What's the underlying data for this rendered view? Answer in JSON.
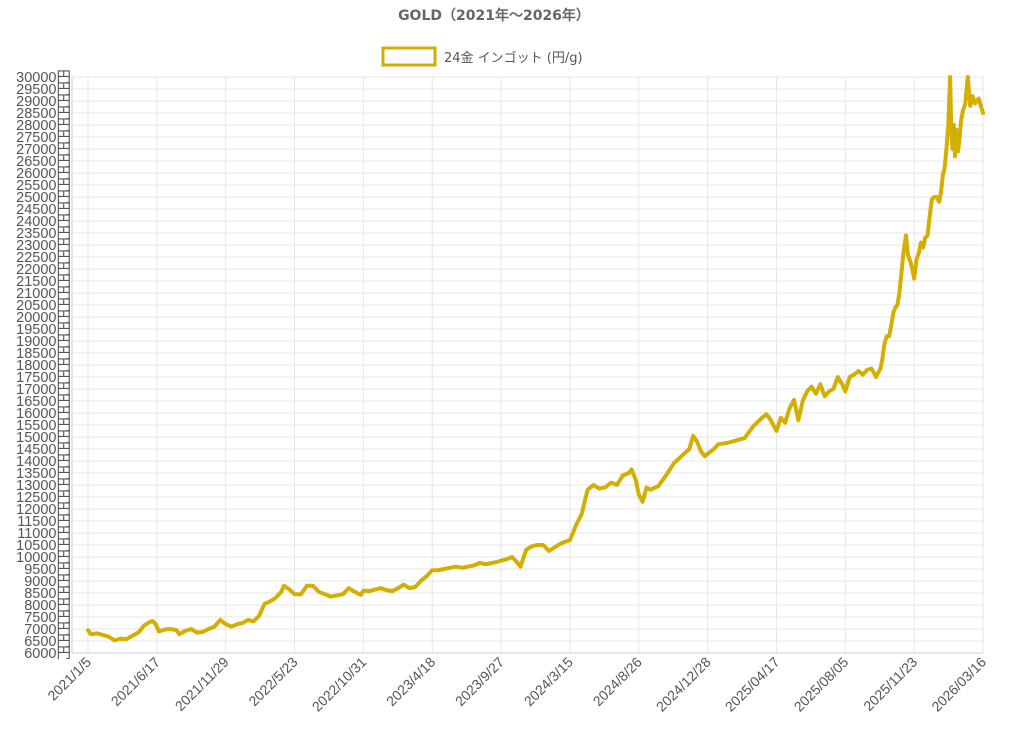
{
  "chart_data": {
    "type": "line",
    "title": "GOLD（2021年～2026年）",
    "series": [
      {
        "name": "24金 インゴット (円/g)",
        "color": "#d4ae00",
        "points": [
          [
            "2021-01-05",
            6950
          ],
          [
            "2021-01-12",
            6780
          ],
          [
            "2021-01-26",
            6820
          ],
          [
            "2021-02-09",
            6750
          ],
          [
            "2021-02-23",
            6680
          ],
          [
            "2021-03-09",
            6520
          ],
          [
            "2021-03-23",
            6600
          ],
          [
            "2021-04-06",
            6580
          ],
          [
            "2021-04-20",
            6720
          ],
          [
            "2021-05-04",
            6850
          ],
          [
            "2021-05-18",
            7150
          ],
          [
            "2021-06-01",
            7300
          ],
          [
            "2021-06-08",
            7330
          ],
          [
            "2021-06-15",
            7180
          ],
          [
            "2021-06-22",
            6900
          ],
          [
            "2021-07-06",
            6980
          ],
          [
            "2021-07-20",
            7000
          ],
          [
            "2021-08-03",
            6950
          ],
          [
            "2021-08-10",
            6780
          ],
          [
            "2021-08-24",
            6920
          ],
          [
            "2021-09-07",
            7000
          ],
          [
            "2021-09-21",
            6850
          ],
          [
            "2021-10-05",
            6880
          ],
          [
            "2021-10-19",
            7000
          ],
          [
            "2021-11-02",
            7100
          ],
          [
            "2021-11-16",
            7380
          ],
          [
            "2021-11-29",
            7200
          ],
          [
            "2021-12-14",
            7100
          ],
          [
            "2021-12-28",
            7200
          ],
          [
            "2022-01-11",
            7250
          ],
          [
            "2022-01-25",
            7380
          ],
          [
            "2022-02-08",
            7320
          ],
          [
            "2022-02-22",
            7550
          ],
          [
            "2022-03-08",
            8050
          ],
          [
            "2022-03-22",
            8150
          ],
          [
            "2022-04-05",
            8300
          ],
          [
            "2022-04-19",
            8550
          ],
          [
            "2022-04-26",
            8800
          ],
          [
            "2022-05-10",
            8650
          ],
          [
            "2022-05-23",
            8450
          ],
          [
            "2022-06-07",
            8450
          ],
          [
            "2022-06-21",
            8800
          ],
          [
            "2022-07-05",
            8800
          ],
          [
            "2022-07-19",
            8550
          ],
          [
            "2022-08-02",
            8450
          ],
          [
            "2022-08-16",
            8350
          ],
          [
            "2022-08-30",
            8400
          ],
          [
            "2022-09-13",
            8450
          ],
          [
            "2022-09-27",
            8700
          ],
          [
            "2022-10-11",
            8550
          ],
          [
            "2022-10-25",
            8420
          ],
          [
            "2022-10-31",
            8600
          ],
          [
            "2022-11-15",
            8580
          ],
          [
            "2022-11-29",
            8650
          ],
          [
            "2022-12-13",
            8700
          ],
          [
            "2022-12-27",
            8620
          ],
          [
            "2023-01-10",
            8580
          ],
          [
            "2023-01-24",
            8700
          ],
          [
            "2023-02-07",
            8850
          ],
          [
            "2023-02-21",
            8700
          ],
          [
            "2023-03-07",
            8750
          ],
          [
            "2023-03-21",
            9000
          ],
          [
            "2023-04-04",
            9200
          ],
          [
            "2023-04-18",
            9450
          ],
          [
            "2023-05-02",
            9450
          ],
          [
            "2023-05-16",
            9500
          ],
          [
            "2023-05-30",
            9550
          ],
          [
            "2023-06-13",
            9600
          ],
          [
            "2023-06-27",
            9550
          ],
          [
            "2023-07-11",
            9600
          ],
          [
            "2023-07-25",
            9650
          ],
          [
            "2023-08-08",
            9750
          ],
          [
            "2023-08-22",
            9700
          ],
          [
            "2023-09-05",
            9750
          ],
          [
            "2023-09-19",
            9800
          ],
          [
            "2023-09-27",
            9850
          ],
          [
            "2023-10-10",
            9900
          ],
          [
            "2023-10-24",
            10000
          ],
          [
            "2023-11-07",
            9750
          ],
          [
            "2023-11-14",
            9600
          ],
          [
            "2023-11-28",
            10300
          ],
          [
            "2023-12-12",
            10450
          ],
          [
            "2023-12-26",
            10500
          ],
          [
            "2024-01-09",
            10500
          ],
          [
            "2024-01-23",
            10250
          ],
          [
            "2024-02-06",
            10400
          ],
          [
            "2024-02-20",
            10550
          ],
          [
            "2024-03-05",
            10650
          ],
          [
            "2024-03-15",
            10700
          ],
          [
            "2024-03-29",
            11300
          ],
          [
            "2024-04-12",
            11800
          ],
          [
            "2024-04-26",
            12800
          ],
          [
            "2024-05-10",
            13000
          ],
          [
            "2024-05-24",
            12850
          ],
          [
            "2024-06-07",
            12900
          ],
          [
            "2024-06-21",
            13100
          ],
          [
            "2024-07-05",
            13000
          ],
          [
            "2024-07-19",
            13400
          ],
          [
            "2024-08-02",
            13500
          ],
          [
            "2024-08-09",
            13650
          ],
          [
            "2024-08-19",
            13200
          ],
          [
            "2024-08-26",
            12600
          ],
          [
            "2024-09-02",
            12300
          ],
          [
            "2024-09-09",
            12900
          ],
          [
            "2024-09-16",
            12800
          ],
          [
            "2024-09-30",
            12950
          ],
          [
            "2024-10-14",
            13400
          ],
          [
            "2024-10-28",
            13900
          ],
          [
            "2024-11-11",
            14200
          ],
          [
            "2024-11-25",
            14500
          ],
          [
            "2024-12-02",
            15050
          ],
          [
            "2024-12-09",
            14800
          ],
          [
            "2024-12-16",
            14400
          ],
          [
            "2024-12-23",
            14200
          ],
          [
            "2024-12-28",
            14300
          ],
          [
            "2025-01-07",
            14500
          ],
          [
            "2025-01-14",
            14700
          ],
          [
            "2025-01-28",
            14750
          ],
          [
            "2025-02-11",
            14850
          ],
          [
            "2025-02-25",
            14950
          ],
          [
            "2025-03-04",
            15200
          ],
          [
            "2025-03-11",
            15450
          ],
          [
            "2025-03-25",
            15800
          ],
          [
            "2025-04-01",
            15950
          ],
          [
            "2025-04-08",
            15700
          ],
          [
            "2025-04-17",
            15250
          ],
          [
            "2025-04-24",
            15800
          ],
          [
            "2025-05-01",
            15600
          ],
          [
            "2025-05-08",
            16200
          ],
          [
            "2025-05-15",
            16550
          ],
          [
            "2025-05-22",
            15700
          ],
          [
            "2025-05-29",
            16500
          ],
          [
            "2025-06-05",
            16900
          ],
          [
            "2025-06-12",
            17100
          ],
          [
            "2025-06-19",
            16800
          ],
          [
            "2025-06-26",
            17200
          ],
          [
            "2025-07-03",
            16700
          ],
          [
            "2025-07-10",
            16900
          ],
          [
            "2025-07-17",
            17000
          ],
          [
            "2025-07-24",
            17500
          ],
          [
            "2025-07-31",
            17200
          ],
          [
            "2025-08-05",
            16900
          ],
          [
            "2025-08-12",
            17500
          ],
          [
            "2025-08-19",
            17600
          ],
          [
            "2025-08-26",
            17750
          ],
          [
            "2025-09-02",
            17600
          ],
          [
            "2025-09-09",
            17800
          ],
          [
            "2025-09-16",
            17850
          ],
          [
            "2025-09-23",
            17500
          ],
          [
            "2025-09-30",
            17850
          ],
          [
            "2025-10-03",
            18200
          ],
          [
            "2025-10-06",
            18800
          ],
          [
            "2025-10-10",
            19200
          ],
          [
            "2025-10-14",
            19200
          ],
          [
            "2025-10-17",
            19600
          ],
          [
            "2025-10-21",
            20200
          ],
          [
            "2025-10-24",
            20400
          ],
          [
            "2025-10-27",
            20500
          ],
          [
            "2025-10-30",
            20900
          ],
          [
            "2025-11-03",
            21900
          ],
          [
            "2025-11-06",
            22700
          ],
          [
            "2025-11-10",
            23400
          ],
          [
            "2025-11-13",
            22600
          ],
          [
            "2025-11-17",
            22300
          ],
          [
            "2025-11-20",
            22000
          ],
          [
            "2025-11-23",
            21600
          ],
          [
            "2025-11-27",
            22400
          ],
          [
            "2025-12-01",
            22700
          ],
          [
            "2025-12-04",
            23100
          ],
          [
            "2025-12-08",
            22900
          ],
          [
            "2025-12-11",
            23300
          ],
          [
            "2025-12-15",
            23400
          ],
          [
            "2025-12-18",
            24100
          ],
          [
            "2025-12-22",
            24900
          ],
          [
            "2025-12-26",
            25000
          ],
          [
            "2025-12-30",
            25000
          ],
          [
            "2026-01-03",
            24800
          ],
          [
            "2026-01-06",
            25200
          ],
          [
            "2026-01-09",
            25900
          ],
          [
            "2026-01-12",
            26200
          ],
          [
            "2026-01-15",
            27000
          ],
          [
            "2026-01-18",
            28000
          ],
          [
            "2026-01-21",
            30000
          ],
          [
            "2026-01-23",
            27800
          ],
          [
            "2026-01-25",
            27000
          ],
          [
            "2026-01-27",
            28000
          ],
          [
            "2026-01-29",
            26700
          ],
          [
            "2026-01-31",
            27800
          ],
          [
            "2026-02-03",
            26900
          ],
          [
            "2026-02-05",
            27300
          ],
          [
            "2026-02-08",
            28200
          ],
          [
            "2026-02-11",
            28600
          ],
          [
            "2026-02-15",
            28900
          ],
          [
            "2026-02-19",
            30000
          ],
          [
            "2026-02-23",
            28800
          ],
          [
            "2026-02-27",
            29200
          ],
          [
            "2026-03-03",
            28900
          ],
          [
            "2026-03-09",
            29100
          ],
          [
            "2026-03-16",
            28500
          ]
        ]
      }
    ],
    "x_tick_labels": [
      "2021/1/5",
      "2021/6/17",
      "2021/11/29",
      "2022/5/23",
      "2022/10/31",
      "2023/4/18",
      "2023/9/27",
      "2024/3/15",
      "2024/8/26",
      "2024/12/28",
      "2025/04/17",
      "2025/08/05",
      "2025/11/23",
      "2026/03/16"
    ],
    "y_ticks": [
      "6000円",
      "6500円",
      "7000円",
      "7500円",
      "8000円",
      "8500円",
      "9000円",
      "9500円",
      "10000円",
      "10500円",
      "11000円",
      "11500円",
      "12000円",
      "12500円",
      "13000円",
      "13500円",
      "14000円",
      "14500円",
      "15000円",
      "15500円",
      "16000円",
      "16500円",
      "17000円",
      "17500円",
      "18000円",
      "18500円",
      "19000円",
      "19500円",
      "20000円",
      "20500円",
      "21000円",
      "21500円",
      "22000円",
      "22500円",
      "23000円",
      "23500円",
      "24000円",
      "24500円",
      "25000円",
      "25500円",
      "26000円",
      "26500円",
      "27000円",
      "27500円",
      "28000円",
      "28500円",
      "29000円",
      "29500円",
      "30000円"
    ],
    "ylim": [
      6000,
      30000
    ],
    "y_step": 500,
    "grid": true,
    "legend_position": "top-center"
  }
}
